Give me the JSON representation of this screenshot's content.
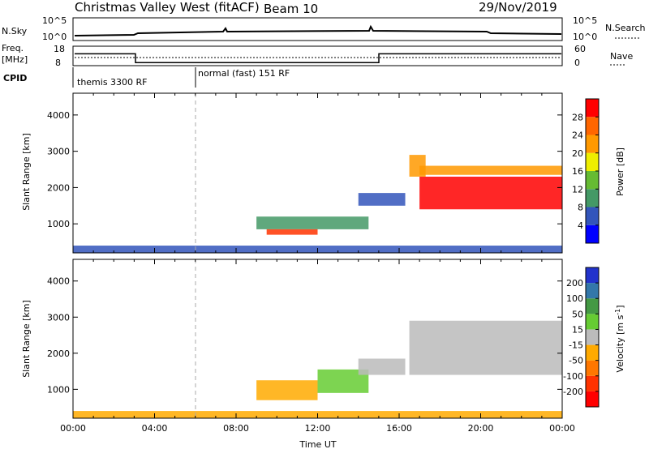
{
  "header": {
    "station": "Christmas Valley West (fitACF)",
    "beam": "Beam 10",
    "date": "29/Nov/2019"
  },
  "strip": {
    "nsky_label": "N.Sky",
    "nsky_ticks": [
      "10^5",
      "10^0"
    ],
    "nsearch_label": "N.Search",
    "nsearch_ticks": [
      "10^5",
      "10^0"
    ],
    "freq_label_1": "Freq.",
    "freq_label_2": "[MHz]",
    "freq_ticks": [
      "18",
      "8"
    ],
    "nave_label": "Nave",
    "nave_ticks": [
      "60",
      "0"
    ],
    "cpid_label": "CPID",
    "cpid_modes": [
      {
        "label": "themis 3300 RF",
        "start_hour": 0
      },
      {
        "label": "normal (fast) 151 RF",
        "start_hour": 6
      }
    ],
    "freq_steps": [
      {
        "start": 0,
        "end": 3,
        "mhz": 15
      },
      {
        "start": 3,
        "end": 15,
        "mhz": 9
      },
      {
        "start": 15,
        "end": 24,
        "mhz": 15
      }
    ]
  },
  "chart_data": [
    {
      "type": "heatmap",
      "name": "power",
      "ylabel": "Slant Range [km]",
      "xlabel": "",
      "xlim": [
        0,
        24
      ],
      "ylim": [
        200,
        4600
      ],
      "yticks": [
        "1000",
        "2000",
        "3000",
        "4000"
      ],
      "colorbar_label": "Power [dB]",
      "colorbar_ticks": [
        "4",
        "8",
        "12",
        "16",
        "20",
        "24",
        "28"
      ],
      "colorbar_colors": [
        "#0000ff",
        "#3355bb",
        "#449966",
        "#66bb33",
        "#eeee00",
        "#ff9900",
        "#ff6600",
        "#ff0000"
      ],
      "regions": [
        {
          "t0": 0.0,
          "t1": 24.0,
          "r0": 200,
          "r1": 400,
          "color": "#3355bb"
        },
        {
          "t0": 9.0,
          "t1": 14.5,
          "r0": 850,
          "r1": 1200,
          "color": "#449966"
        },
        {
          "t0": 9.5,
          "t1": 12.0,
          "r0": 700,
          "r1": 850,
          "color": "#ff3300"
        },
        {
          "t0": 14.0,
          "t1": 16.3,
          "r0": 1500,
          "r1": 1850,
          "color": "#3355bb"
        },
        {
          "t0": 16.5,
          "t1": 17.3,
          "r0": 2300,
          "r1": 2900,
          "color": "#ff9900"
        },
        {
          "t0": 17.0,
          "t1": 24.0,
          "r0": 1400,
          "r1": 2300,
          "color": "#ff0000"
        },
        {
          "t0": 17.0,
          "t1": 24.0,
          "r0": 2350,
          "r1": 2600,
          "color": "#ff9900"
        }
      ]
    },
    {
      "type": "heatmap",
      "name": "velocity",
      "ylabel": "Slant Range [km]",
      "xlabel": "Time UT",
      "xlim": [
        0,
        24
      ],
      "ylim": [
        200,
        4600
      ],
      "yticks": [
        "1000",
        "2000",
        "3000",
        "4000"
      ],
      "xticks": [
        "00:00",
        "04:00",
        "08:00",
        "12:00",
        "16:00",
        "20:00",
        "00:00"
      ],
      "colorbar_label": "Velocity [m s",
      "colorbar_label_sup": "-1",
      "colorbar_label_end": "]",
      "colorbar_ticks": [
        "200",
        "100",
        "50",
        "15",
        "-15",
        "-50",
        "-100",
        "-200"
      ],
      "colorbar_colors": [
        "#2233cc",
        "#3377aa",
        "#449944",
        "#66cc33",
        "#bbbbbb",
        "#ffaa00",
        "#ff7700",
        "#ff3300",
        "#ff0000"
      ],
      "regions": [
        {
          "t0": 0.0,
          "t1": 24.0,
          "r0": 200,
          "r1": 400,
          "color": "#ffaa00"
        },
        {
          "t0": 9.0,
          "t1": 12.0,
          "r0": 700,
          "r1": 1250,
          "color": "#ffaa00"
        },
        {
          "t0": 12.0,
          "t1": 14.5,
          "r0": 900,
          "r1": 1550,
          "color": "#66cc33"
        },
        {
          "t0": 14.0,
          "t1": 16.3,
          "r0": 1400,
          "r1": 1850,
          "color": "#bbbbbb"
        },
        {
          "t0": 16.5,
          "t1": 24.0,
          "r0": 1400,
          "r1": 2900,
          "color": "#bbbbbb"
        }
      ]
    }
  ]
}
